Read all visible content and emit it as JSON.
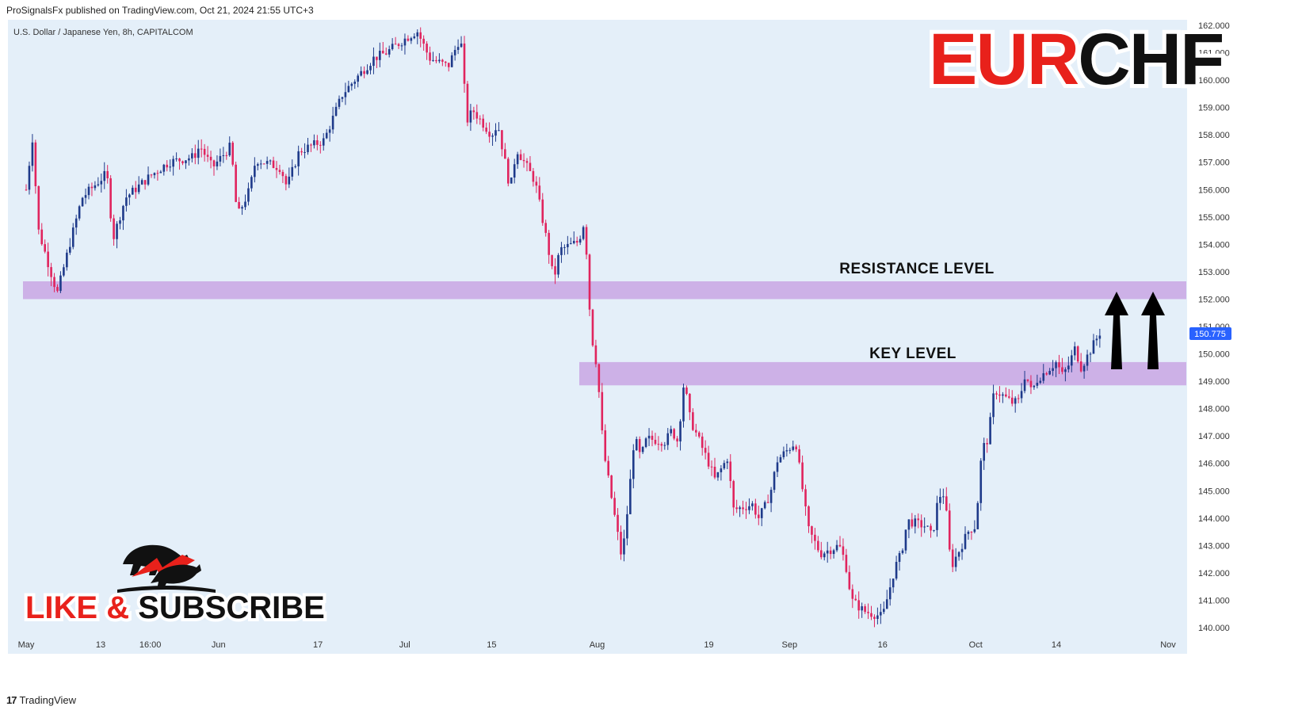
{
  "header": {
    "published": "ProSignalsFx published on TradingView.com, Oct 21, 2024 21:55 UTC+3"
  },
  "footer": {
    "brand": "TradingView",
    "logo_glyph": "17"
  },
  "overlay": {
    "symbol": "U.S. Dollar / Japanese Yen, 8h, CAPITALCOM",
    "title_part1": "EUR",
    "title_part2": "CHF",
    "title_color1": "#e8211b",
    "title_color2": "#111111",
    "cta_part1": "LIKE & ",
    "cta_part2": "SUBSCRIBE",
    "cta_color1": "#e8211b",
    "cta_color2": "#111111",
    "resistance_label": "RESISTANCE LEVEL",
    "key_label": "KEY LEVEL",
    "price_tag": "150.775",
    "price_tag_color": "#2962ff"
  },
  "chart_data": {
    "type": "candlestick",
    "title": "U.S. Dollar / Japanese Yen, 8h, CAPITALCOM",
    "x_ticks": [
      "May",
      "13",
      "16:00",
      "Jun",
      "17",
      "Jul",
      "15",
      "Aug",
      "19",
      "Sep",
      "16",
      "Oct",
      "14",
      "Nov"
    ],
    "y_ticks": [
      "162.000",
      "161.000",
      "160.000",
      "159.000",
      "158.000",
      "157.000",
      "156.000",
      "155.000",
      "154.000",
      "153.000",
      "152.000",
      "151.000",
      "150.000",
      "149.000",
      "148.000",
      "147.000",
      "146.000",
      "145.000",
      "144.000",
      "143.000",
      "142.000",
      "141.000",
      "140.000"
    ],
    "ylim": [
      139.5,
      162.2
    ],
    "last_price": 150.775,
    "up_color": "#1e3a8a",
    "down_color": "#e0245e",
    "zone_color": "#c9a6e4",
    "background": "#e4eff9",
    "zones": [
      {
        "name": "RESISTANCE LEVEL",
        "low": 152.0,
        "high": 152.65
      },
      {
        "name": "KEY LEVEL",
        "low": 148.85,
        "high": 149.7
      }
    ],
    "price_path": [
      [
        "2024-05-01",
        156.0
      ],
      [
        "2024-05-02",
        157.9
      ],
      [
        "2024-05-03",
        154.5
      ],
      [
        "2024-05-06",
        152.2
      ],
      [
        "2024-05-08",
        154.0
      ],
      [
        "2024-05-10",
        155.7
      ],
      [
        "2024-05-14",
        156.6
      ],
      [
        "2024-05-15",
        154.2
      ],
      [
        "2024-05-17",
        155.7
      ],
      [
        "2024-05-21",
        156.5
      ],
      [
        "2024-05-24",
        157.0
      ],
      [
        "2024-05-28",
        157.2
      ],
      [
        "2024-05-29",
        157.6
      ],
      [
        "2024-05-31",
        156.8
      ],
      [
        "2024-06-03",
        157.6
      ],
      [
        "2024-06-04",
        155.0
      ],
      [
        "2024-06-06",
        156.0
      ],
      [
        "2024-06-07",
        157.1
      ],
      [
        "2024-06-11",
        156.8
      ],
      [
        "2024-06-12",
        156.1
      ],
      [
        "2024-06-14",
        157.4
      ],
      [
        "2024-06-18",
        157.8
      ],
      [
        "2024-06-21",
        159.5
      ],
      [
        "2024-06-26",
        160.8
      ],
      [
        "2024-06-28",
        161.0
      ],
      [
        "2024-07-01",
        161.5
      ],
      [
        "2024-07-03",
        161.8
      ],
      [
        "2024-07-05",
        160.8
      ],
      [
        "2024-07-08",
        160.5
      ],
      [
        "2024-07-10",
        161.6
      ],
      [
        "2024-07-11",
        158.5
      ],
      [
        "2024-07-12",
        158.9
      ],
      [
        "2024-07-15",
        158.0
      ],
      [
        "2024-07-16",
        158.4
      ],
      [
        "2024-07-18",
        156.0
      ],
      [
        "2024-07-19",
        157.5
      ],
      [
        "2024-07-22",
        156.3
      ],
      [
        "2024-07-24",
        154.0
      ],
      [
        "2024-07-25",
        152.7
      ],
      [
        "2024-07-26",
        153.8
      ],
      [
        "2024-07-29",
        154.1
      ],
      [
        "2024-07-30",
        154.9
      ],
      [
        "2024-07-31",
        150.8
      ],
      [
        "2024-08-01",
        149.5
      ],
      [
        "2024-08-02",
        146.5
      ],
      [
        "2024-08-05",
        142.5
      ],
      [
        "2024-08-06",
        144.5
      ],
      [
        "2024-08-07",
        147.0
      ],
      [
        "2024-08-08",
        146.2
      ],
      [
        "2024-08-09",
        146.9
      ],
      [
        "2024-08-12",
        146.8
      ],
      [
        "2024-08-13",
        147.2
      ],
      [
        "2024-08-14",
        146.8
      ],
      [
        "2024-08-15",
        149.0
      ],
      [
        "2024-08-16",
        147.6
      ],
      [
        "2024-08-19",
        146.0
      ],
      [
        "2024-08-20",
        145.4
      ],
      [
        "2024-08-21",
        145.8
      ],
      [
        "2024-08-22",
        146.2
      ],
      [
        "2024-08-23",
        144.3
      ],
      [
        "2024-08-26",
        144.5
      ],
      [
        "2024-08-27",
        144.0
      ],
      [
        "2024-08-28",
        144.4
      ],
      [
        "2024-08-29",
        145.0
      ],
      [
        "2024-08-30",
        146.1
      ],
      [
        "2024-09-02",
        146.8
      ],
      [
        "2024-09-03",
        145.2
      ],
      [
        "2024-09-04",
        143.6
      ],
      [
        "2024-09-06",
        142.7
      ],
      [
        "2024-09-09",
        143.0
      ],
      [
        "2024-09-10",
        142.4
      ],
      [
        "2024-09-11",
        141.0
      ],
      [
        "2024-09-13",
        140.6
      ],
      [
        "2024-09-16",
        140.4
      ],
      [
        "2024-09-17",
        141.3
      ],
      [
        "2024-09-18",
        142.2
      ],
      [
        "2024-09-19",
        142.7
      ],
      [
        "2024-09-20",
        143.9
      ],
      [
        "2024-09-23",
        143.7
      ],
      [
        "2024-09-24",
        143.3
      ],
      [
        "2024-09-25",
        144.8
      ],
      [
        "2024-09-26",
        144.9
      ],
      [
        "2024-09-27",
        142.2
      ],
      [
        "2024-09-30",
        143.6
      ],
      [
        "2024-10-01",
        143.7
      ],
      [
        "2024-10-02",
        146.5
      ],
      [
        "2024-10-03",
        146.9
      ],
      [
        "2024-10-04",
        148.7
      ],
      [
        "2024-10-07",
        148.2
      ],
      [
        "2024-10-08",
        148.3
      ],
      [
        "2024-10-09",
        149.3
      ],
      [
        "2024-10-10",
        148.6
      ],
      [
        "2024-10-11",
        149.1
      ],
      [
        "2024-10-14",
        149.7
      ],
      [
        "2024-10-15",
        149.2
      ],
      [
        "2024-10-16",
        149.6
      ],
      [
        "2024-10-17",
        150.2
      ],
      [
        "2024-10-18",
        149.5
      ],
      [
        "2024-10-21",
        150.775
      ]
    ]
  }
}
